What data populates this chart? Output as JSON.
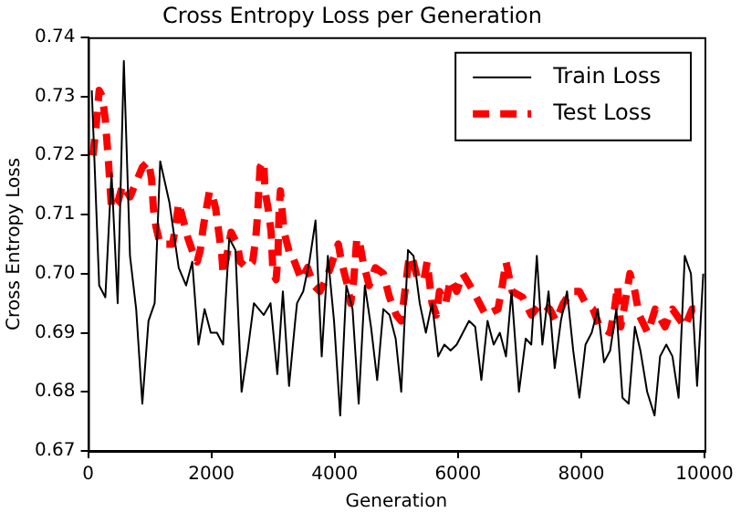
{
  "chart_data": {
    "type": "line",
    "title": "Cross Entropy Loss per Generation",
    "xlabel": "Generation",
    "ylabel": "Cross Entropy Loss",
    "xlim": [
      0,
      10000
    ],
    "xticks": [
      0,
      2000,
      4000,
      6000,
      8000,
      10000
    ],
    "ylim": [
      0.67,
      0.74
    ],
    "yticks": [
      {
        "value": 0.67,
        "label": "0.67"
      },
      {
        "value": 0.68,
        "label": "0.68"
      },
      {
        "value": 0.69,
        "label": "0.69"
      },
      {
        "value": 0.7,
        "label": "0.70"
      },
      {
        "value": 0.71,
        "label": "0.71"
      },
      {
        "value": 0.72,
        "label": "0.72"
      },
      {
        "value": 0.73,
        "label": "0.73"
      },
      {
        "value": 0.74,
        "label": "0.74"
      }
    ],
    "grid": false,
    "legend": "top right",
    "marker": "none",
    "series": [
      {
        "name": "Train Loss",
        "color": "#000000",
        "line_style": "solid",
        "x": [
          60,
          180,
          280,
          380,
          480,
          580,
          680,
          780,
          880,
          980,
          1080,
          1170,
          1320,
          1470,
          1590,
          1690,
          1790,
          1890,
          1990,
          2090,
          2190,
          2290,
          2390,
          2490,
          2590,
          2690,
          2850,
          2960,
          3070,
          3160,
          3260,
          3360,
          3390,
          3490,
          3590,
          3690,
          3790,
          3890,
          3990,
          4090,
          4190,
          4290,
          4390,
          4490,
          4590,
          4690,
          4790,
          4890,
          4990,
          5080,
          5190,
          5280,
          5380,
          5480,
          5580,
          5680,
          5780,
          5880,
          5980,
          6080,
          6180,
          6280,
          6380,
          6480,
          6580,
          6680,
          6780,
          6870,
          6990,
          7100,
          7190,
          7280,
          7370,
          7470,
          7570,
          7670,
          7770,
          7870,
          7970,
          8070,
          8170,
          8270,
          8370,
          8470,
          8570,
          8670,
          8770,
          8870,
          8960,
          9070,
          9190,
          9280,
          9380,
          9480,
          9580,
          9680,
          9780,
          9880,
          9980
        ],
        "values": [
          0.731,
          0.698,
          0.696,
          0.717,
          0.695,
          0.736,
          0.703,
          0.694,
          0.678,
          0.692,
          0.695,
          0.719,
          0.712,
          0.701,
          0.698,
          0.702,
          0.688,
          0.694,
          0.69,
          0.69,
          0.688,
          0.706,
          0.704,
          0.68,
          0.687,
          0.695,
          0.693,
          0.695,
          0.683,
          0.697,
          0.681,
          0.692,
          0.695,
          0.697,
          0.702,
          0.709,
          0.686,
          0.703,
          0.692,
          0.676,
          0.698,
          0.694,
          0.678,
          0.698,
          0.691,
          0.682,
          0.694,
          0.693,
          0.689,
          0.68,
          0.704,
          0.703,
          0.695,
          0.69,
          0.695,
          0.686,
          0.688,
          0.687,
          0.688,
          0.69,
          0.692,
          0.691,
          0.682,
          0.692,
          0.688,
          0.69,
          0.686,
          0.697,
          0.68,
          0.689,
          0.688,
          0.703,
          0.688,
          0.697,
          0.684,
          0.692,
          0.697,
          0.687,
          0.679,
          0.688,
          0.69,
          0.694,
          0.685,
          0.687,
          0.694,
          0.679,
          0.678,
          0.691,
          0.687,
          0.68,
          0.676,
          0.686,
          0.688,
          0.686,
          0.679,
          0.703,
          0.7,
          0.681,
          0.7
        ]
      },
      {
        "name": "Test Loss",
        "color": "#ff0000",
        "line_style": "dashed",
        "x": [
          80,
          130,
          180,
          230,
          280,
          330,
          380,
          480,
          560,
          680,
          760,
          880,
          980,
          1030,
          1060,
          1100,
          1170,
          1270,
          1370,
          1420,
          1470,
          1520,
          1620,
          1720,
          1770,
          1820,
          1870,
          1920,
          1970,
          2020,
          2070,
          2120,
          2170,
          2190,
          2250,
          2320,
          2420,
          2470,
          2570,
          2670,
          2720,
          2750,
          2770,
          2790,
          2850,
          2870,
          2920,
          2970,
          3000,
          3050,
          3080,
          3100,
          3120,
          3180,
          3280,
          3313,
          3460,
          3560,
          3660,
          3760,
          3860,
          3930,
          4060,
          4110,
          4210,
          4260,
          4310,
          4360,
          4410,
          4460,
          4560,
          4660,
          4790,
          4890,
          5000,
          5080,
          5200,
          5250,
          5350,
          5450,
          5500,
          5580,
          5650,
          5700,
          5800,
          5880,
          5980,
          6080,
          6250,
          6450,
          6650,
          6720,
          6780,
          6880,
          7050,
          7190,
          7340,
          7490,
          7590,
          7710,
          7840,
          7970,
          8070,
          8190,
          8300,
          8470,
          8540,
          8590,
          8640,
          8710,
          8790,
          8870,
          8940,
          9080,
          9200,
          9360,
          9480,
          9680,
          9800,
          9930
        ],
        "values": [
          0.72,
          0.725,
          0.731,
          0.73,
          0.726,
          0.719,
          0.711,
          0.712,
          0.715,
          0.713,
          0.715,
          0.718,
          0.719,
          0.716,
          0.711,
          0.708,
          0.705,
          0.705,
          0.705,
          0.708,
          0.712,
          0.71,
          0.706,
          0.703,
          0.702,
          0.704,
          0.708,
          0.711,
          0.714,
          0.713,
          0.711,
          0.707,
          0.703,
          0.7,
          0.703,
          0.707,
          0.705,
          0.702,
          0.701,
          0.702,
          0.706,
          0.71,
          0.714,
          0.718,
          0.719,
          0.714,
          0.711,
          0.707,
          0.7,
          0.699,
          0.703,
          0.711,
          0.714,
          0.707,
          0.703,
          0.703,
          0.699,
          0.701,
          0.698,
          0.697,
          0.699,
          0.701,
          0.705,
          0.702,
          0.698,
          0.695,
          0.699,
          0.706,
          0.705,
          0.702,
          0.698,
          0.701,
          0.7,
          0.696,
          0.693,
          0.692,
          0.702,
          0.703,
          0.699,
          0.699,
          0.702,
          0.695,
          0.693,
          0.697,
          0.695,
          0.699,
          0.697,
          0.7,
          0.697,
          0.693,
          0.694,
          0.698,
          0.702,
          0.697,
          0.696,
          0.693,
          0.695,
          0.694,
          0.692,
          0.695,
          0.697,
          0.697,
          0.695,
          0.694,
          0.691,
          0.69,
          0.694,
          0.698,
          0.691,
          0.695,
          0.7,
          0.697,
          0.693,
          0.69,
          0.694,
          0.691,
          0.694,
          0.691,
          0.694,
          0.694
        ]
      }
    ]
  }
}
